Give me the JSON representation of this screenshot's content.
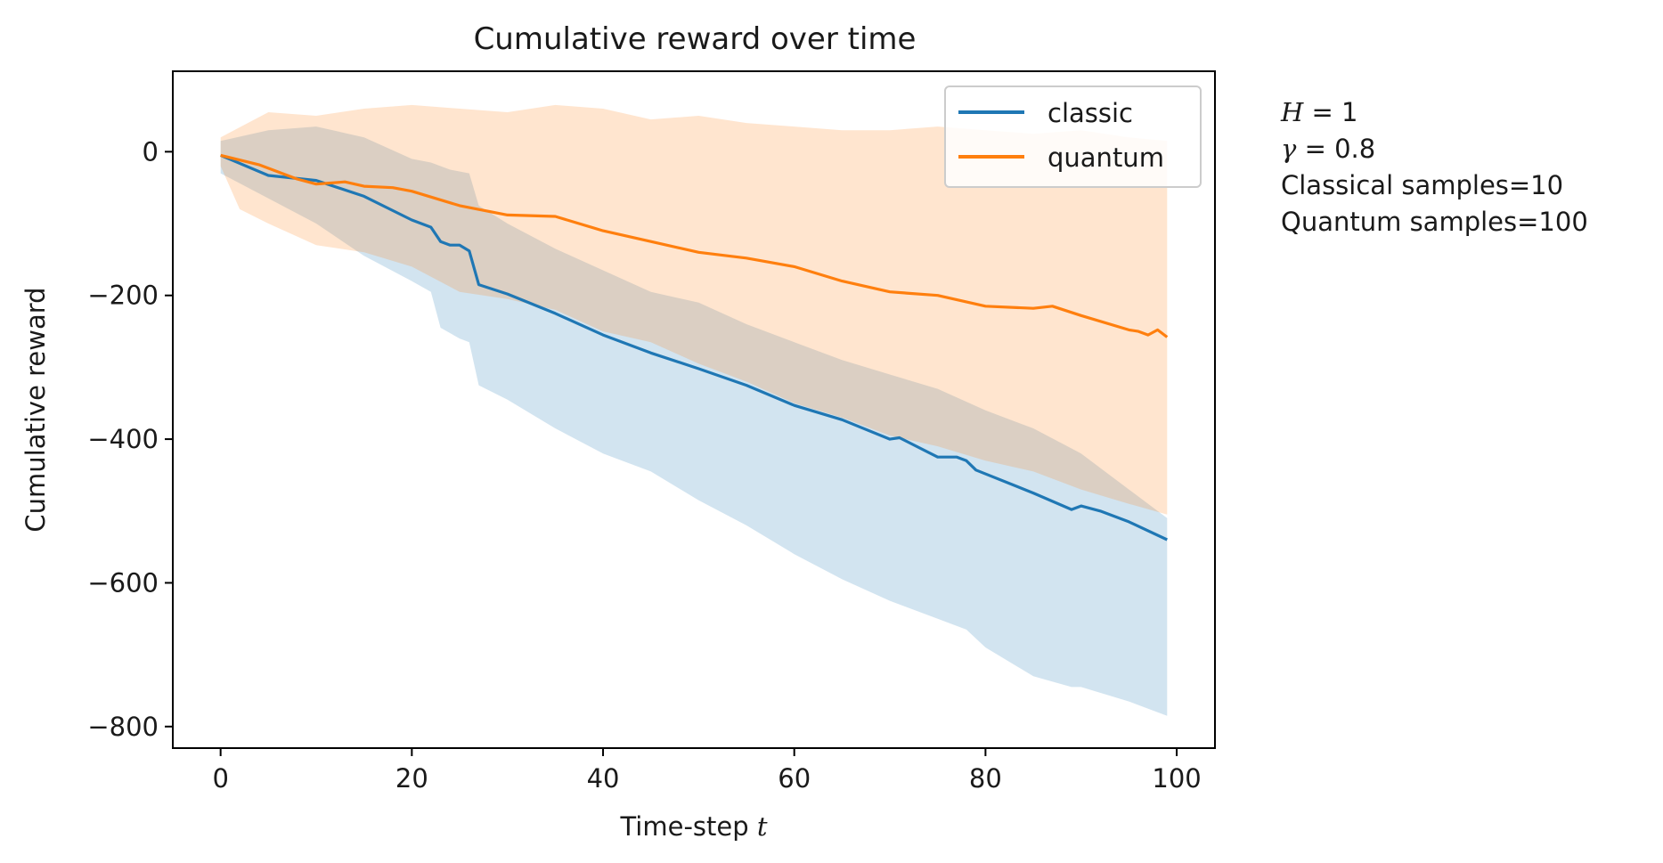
{
  "chart_data": {
    "type": "line",
    "title": "Cumulative reward over time",
    "xlabel": "Time-step t",
    "xlabel_text": "Time-step ",
    "xlabel_var": "t",
    "ylabel": "Cumulative reward",
    "xlim": [
      -5,
      104
    ],
    "ylim": [
      -830,
      112
    ],
    "xticks": [
      0,
      20,
      40,
      60,
      80,
      100
    ],
    "yticks": [
      0,
      -200,
      -400,
      -600,
      -800
    ],
    "xtick_labels": [
      "0",
      "20",
      "40",
      "60",
      "80",
      "100"
    ],
    "ytick_labels": [
      "0",
      "−200",
      "−400",
      "−600",
      "−800"
    ],
    "legend_position": "top-right",
    "grid": false,
    "series": [
      {
        "name": "classic",
        "color": "#1f77b4",
        "band_color": "#1f77b4",
        "band_opacity": 0.2,
        "points": [
          [
            0,
            -5
          ],
          [
            5,
            -33
          ],
          [
            10,
            -40
          ],
          [
            15,
            -62
          ],
          [
            20,
            -95
          ],
          [
            22,
            -105
          ],
          [
            23,
            -125
          ],
          [
            24,
            -130
          ],
          [
            25,
            -130
          ],
          [
            26,
            -138
          ],
          [
            27,
            -185
          ],
          [
            30,
            -198
          ],
          [
            35,
            -225
          ],
          [
            40,
            -255
          ],
          [
            45,
            -280
          ],
          [
            50,
            -302
          ],
          [
            55,
            -325
          ],
          [
            60,
            -353
          ],
          [
            65,
            -373
          ],
          [
            70,
            -400
          ],
          [
            71,
            -398
          ],
          [
            75,
            -425
          ],
          [
            77,
            -425
          ],
          [
            78,
            -430
          ],
          [
            79,
            -443
          ],
          [
            85,
            -475
          ],
          [
            89,
            -498
          ],
          [
            90,
            -493
          ],
          [
            92,
            -500
          ],
          [
            95,
            -515
          ],
          [
            99,
            -540
          ]
        ],
        "band_upper": [
          [
            0,
            15
          ],
          [
            5,
            30
          ],
          [
            10,
            35
          ],
          [
            15,
            20
          ],
          [
            20,
            -10
          ],
          [
            22,
            -15
          ],
          [
            24,
            -25
          ],
          [
            26,
            -30
          ],
          [
            27,
            -75
          ],
          [
            30,
            -100
          ],
          [
            35,
            -135
          ],
          [
            40,
            -165
          ],
          [
            45,
            -195
          ],
          [
            50,
            -210
          ],
          [
            55,
            -240
          ],
          [
            60,
            -265
          ],
          [
            65,
            -290
          ],
          [
            70,
            -310
          ],
          [
            75,
            -330
          ],
          [
            80,
            -360
          ],
          [
            85,
            -385
          ],
          [
            90,
            -420
          ],
          [
            95,
            -470
          ],
          [
            99,
            -510
          ]
        ],
        "band_lower": [
          [
            0,
            -30
          ],
          [
            5,
            -65
          ],
          [
            10,
            -100
          ],
          [
            15,
            -145
          ],
          [
            20,
            -180
          ],
          [
            22,
            -195
          ],
          [
            23,
            -245
          ],
          [
            25,
            -260
          ],
          [
            26,
            -265
          ],
          [
            27,
            -325
          ],
          [
            30,
            -345
          ],
          [
            35,
            -385
          ],
          [
            40,
            -420
          ],
          [
            45,
            -445
          ],
          [
            50,
            -485
          ],
          [
            55,
            -520
          ],
          [
            60,
            -560
          ],
          [
            65,
            -595
          ],
          [
            70,
            -625
          ],
          [
            75,
            -650
          ],
          [
            78,
            -665
          ],
          [
            80,
            -690
          ],
          [
            85,
            -730
          ],
          [
            89,
            -745
          ],
          [
            90,
            -745
          ],
          [
            95,
            -765
          ],
          [
            99,
            -785
          ]
        ]
      },
      {
        "name": "quantum",
        "color": "#ff7f0e",
        "band_color": "#ff7f0e",
        "band_opacity": 0.2,
        "points": [
          [
            0,
            -5
          ],
          [
            4,
            -18
          ],
          [
            8,
            -38
          ],
          [
            10,
            -45
          ],
          [
            13,
            -42
          ],
          [
            15,
            -48
          ],
          [
            18,
            -50
          ],
          [
            20,
            -55
          ],
          [
            25,
            -75
          ],
          [
            30,
            -88
          ],
          [
            35,
            -90
          ],
          [
            40,
            -110
          ],
          [
            45,
            -125
          ],
          [
            50,
            -140
          ],
          [
            55,
            -148
          ],
          [
            60,
            -160
          ],
          [
            65,
            -180
          ],
          [
            70,
            -195
          ],
          [
            75,
            -200
          ],
          [
            80,
            -215
          ],
          [
            85,
            -218
          ],
          [
            87,
            -215
          ],
          [
            90,
            -228
          ],
          [
            95,
            -248
          ],
          [
            96,
            -250
          ],
          [
            97,
            -255
          ],
          [
            98,
            -248
          ],
          [
            99,
            -258
          ]
        ],
        "band_upper": [
          [
            0,
            20
          ],
          [
            5,
            55
          ],
          [
            10,
            50
          ],
          [
            15,
            60
          ],
          [
            20,
            65
          ],
          [
            25,
            60
          ],
          [
            30,
            55
          ],
          [
            35,
            65
          ],
          [
            40,
            60
          ],
          [
            45,
            45
          ],
          [
            50,
            50
          ],
          [
            55,
            40
          ],
          [
            60,
            35
          ],
          [
            65,
            30
          ],
          [
            70,
            30
          ],
          [
            75,
            35
          ],
          [
            80,
            30
          ],
          [
            85,
            25
          ],
          [
            90,
            30
          ],
          [
            95,
            20
          ],
          [
            99,
            15
          ]
        ],
        "band_lower": [
          [
            0,
            -20
          ],
          [
            2,
            -80
          ],
          [
            5,
            -100
          ],
          [
            10,
            -130
          ],
          [
            15,
            -140
          ],
          [
            20,
            -160
          ],
          [
            25,
            -195
          ],
          [
            30,
            -205
          ],
          [
            35,
            -220
          ],
          [
            40,
            -250
          ],
          [
            45,
            -265
          ],
          [
            50,
            -295
          ],
          [
            55,
            -320
          ],
          [
            60,
            -350
          ],
          [
            65,
            -370
          ],
          [
            70,
            -395
          ],
          [
            75,
            -410
          ],
          [
            80,
            -430
          ],
          [
            85,
            -445
          ],
          [
            90,
            -470
          ],
          [
            95,
            -490
          ],
          [
            99,
            -505
          ]
        ],
        "legend_band": false
      }
    ]
  },
  "annotations": {
    "h_var": "H",
    "h_value": "= 1",
    "gamma_var": "γ",
    "gamma_value": "= 0.8",
    "classical_samples": "Classical samples=10",
    "quantum_samples": "Quantum samples=100"
  }
}
